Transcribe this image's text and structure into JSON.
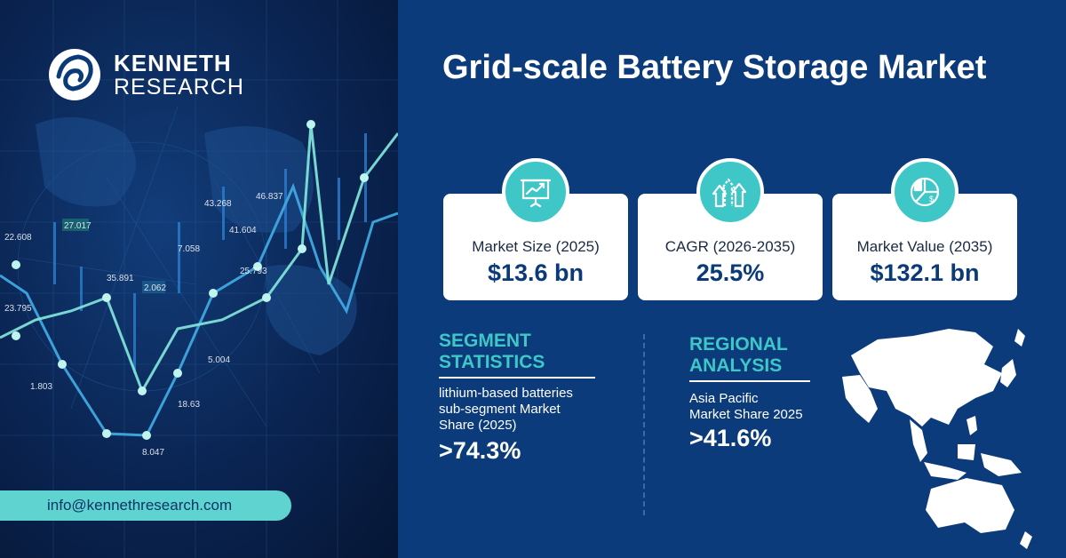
{
  "brand": {
    "name_line1": "KENNETH",
    "name_line2": "RESEARCH",
    "email": "info@kennethresearch.com"
  },
  "title": "Grid-scale Battery Storage Market",
  "stats": [
    {
      "label": "Market Size (2025)",
      "value": "$13.6 bn",
      "icon": "presentation-chart-icon"
    },
    {
      "label": "CAGR (2026-2035)",
      "value": "25.5%",
      "icon": "growth-arrows-icon"
    },
    {
      "label": "Market Value  (2035)",
      "value": "$132.1 bn",
      "icon": "pie-chart-dollar-icon"
    }
  ],
  "segment": {
    "heading_line1": "SEGMENT",
    "heading_line2": "STATISTICS",
    "desc_line1": "lithium-based batteries",
    "desc_line2": "sub-segment Market",
    "desc_line3": "Share (2025)",
    "value": ">74.3%"
  },
  "regional": {
    "heading_line1": "REGIONAL",
    "heading_line2": "ANALYSIS",
    "desc_line1": "Asia Pacific",
    "desc_line2": "Market Share 2025",
    "value": ">41.6%"
  },
  "background_chart_labels": [
    "22.608",
    "27.017",
    "23.795",
    "35.891",
    "1.803",
    "2.062",
    "7.058",
    "43.268",
    "41.604",
    "46.837",
    "25.793",
    "5.004",
    "18.63",
    "8.047"
  ],
  "colors": {
    "accent": "#3fc7c8",
    "panel": "#0b3b7a",
    "card": "#ffffff",
    "value": "#0b3a78"
  }
}
